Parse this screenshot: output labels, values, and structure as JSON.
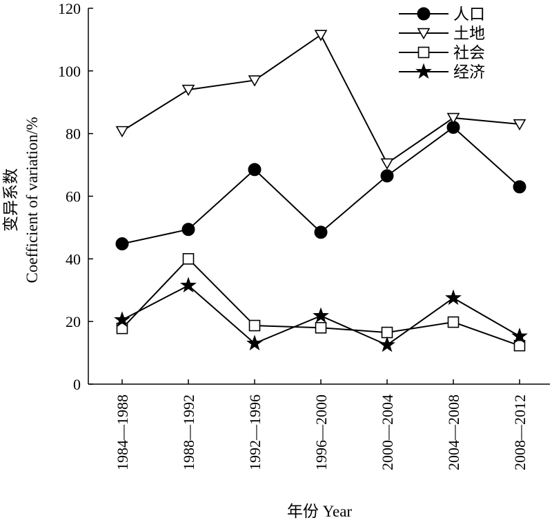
{
  "chart_data": {
    "type": "line",
    "title": "",
    "xlabel": "年份 Year",
    "ylabel_cn": "变异系数",
    "ylabel_en": "Coefficient of variation/%",
    "categories": [
      "1984—1988",
      "1988—1992",
      "1992—1996",
      "1996—2000",
      "2000—2004",
      "2004—2008",
      "2008—2012"
    ],
    "ylim": [
      0,
      120
    ],
    "yticks": [
      "0",
      "20",
      "40",
      "60",
      "80",
      "100",
      "120"
    ],
    "grid": false,
    "legend_position": "top-right",
    "series": [
      {
        "name": "人口",
        "marker": "filled-circle",
        "values": [
          44.8,
          49.4,
          68.5,
          48.5,
          66.5,
          82.0,
          63.0
        ]
      },
      {
        "name": "土地",
        "marker": "open-down-triangle",
        "values": [
          80.8,
          94.0,
          97.0,
          111.5,
          70.5,
          85.0,
          83.0
        ]
      },
      {
        "name": "社会",
        "marker": "open-square",
        "values": [
          17.8,
          40.0,
          18.7,
          18.0,
          16.5,
          19.8,
          12.3
        ]
      },
      {
        "name": "经济",
        "marker": "filled-star",
        "values": [
          20.5,
          31.5,
          13.0,
          21.8,
          12.5,
          27.5,
          15.3
        ]
      }
    ],
    "colors": {
      "line": "#000000",
      "background": "#ffffff"
    }
  }
}
